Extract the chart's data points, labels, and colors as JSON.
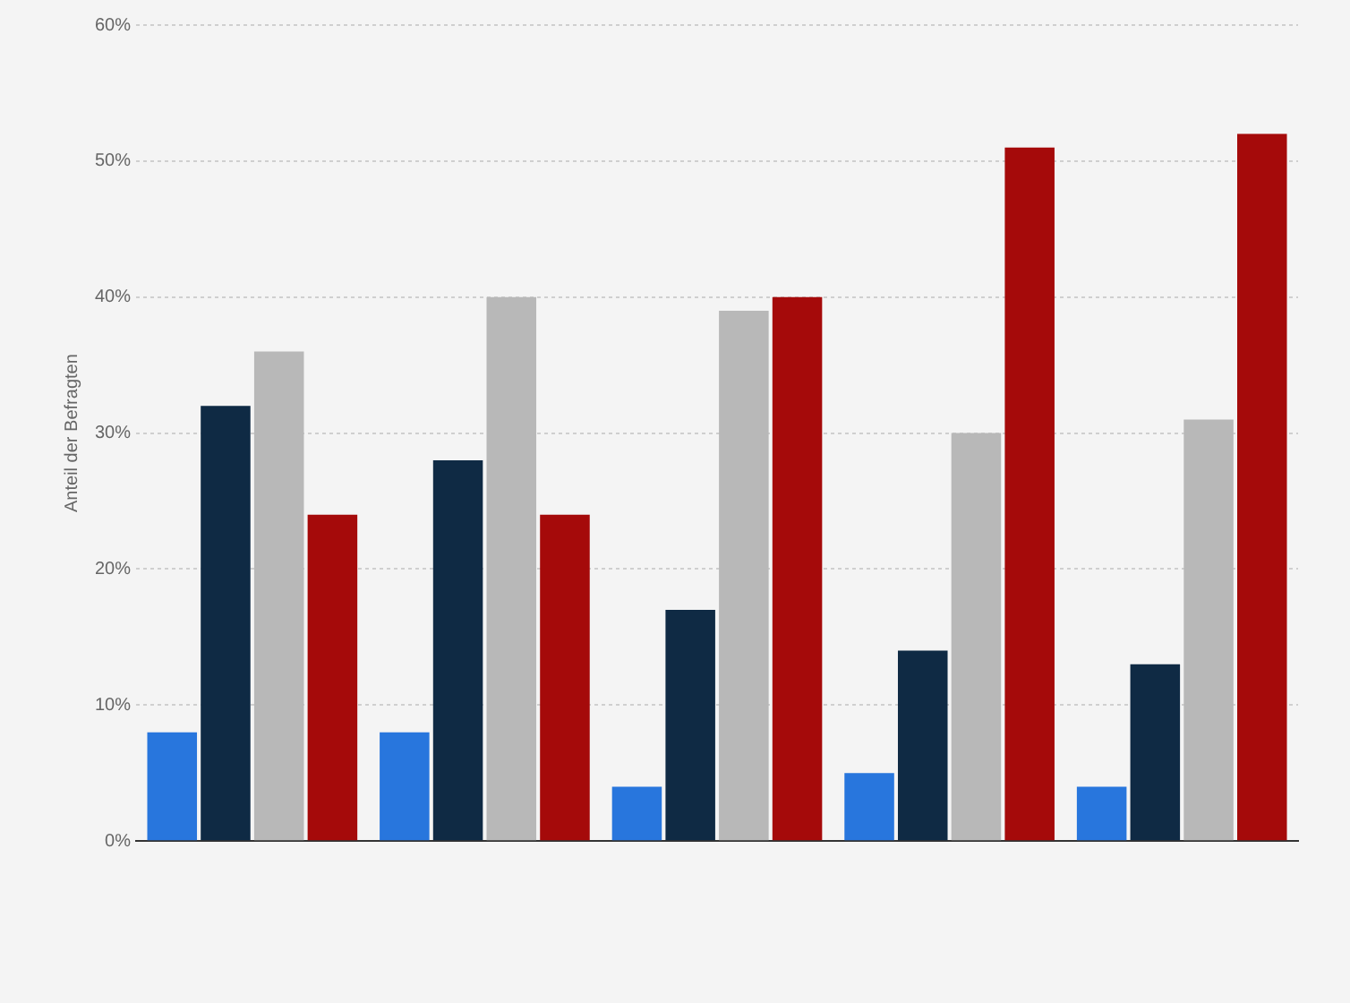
{
  "chart_data": {
    "type": "bar",
    "ylabel": "Anteil der Befragten",
    "categories": [
      null,
      null,
      null,
      null,
      null
    ],
    "series": [
      {
        "color": "#2876dd",
        "values": [
          8,
          8,
          4,
          5,
          4
        ]
      },
      {
        "color": "#0f2a44",
        "values": [
          32,
          28,
          17,
          14,
          13
        ]
      },
      {
        "color": "#b8b8b8",
        "values": [
          36,
          40,
          39,
          30,
          31
        ]
      },
      {
        "color": "#a50a0a",
        "values": [
          24,
          24,
          40,
          51,
          52
        ]
      }
    ],
    "ylim": [
      0,
      60
    ],
    "yticks": [
      {
        "value": 0,
        "label": "0%"
      },
      {
        "value": 10,
        "label": "10%"
      },
      {
        "value": 20,
        "label": "20%"
      },
      {
        "value": 30,
        "label": "30%"
      },
      {
        "value": 40,
        "label": "40%"
      },
      {
        "value": 50,
        "label": "50%"
      },
      {
        "value": 60,
        "label": "60%"
      }
    ],
    "grid": "y",
    "legend": false
  }
}
